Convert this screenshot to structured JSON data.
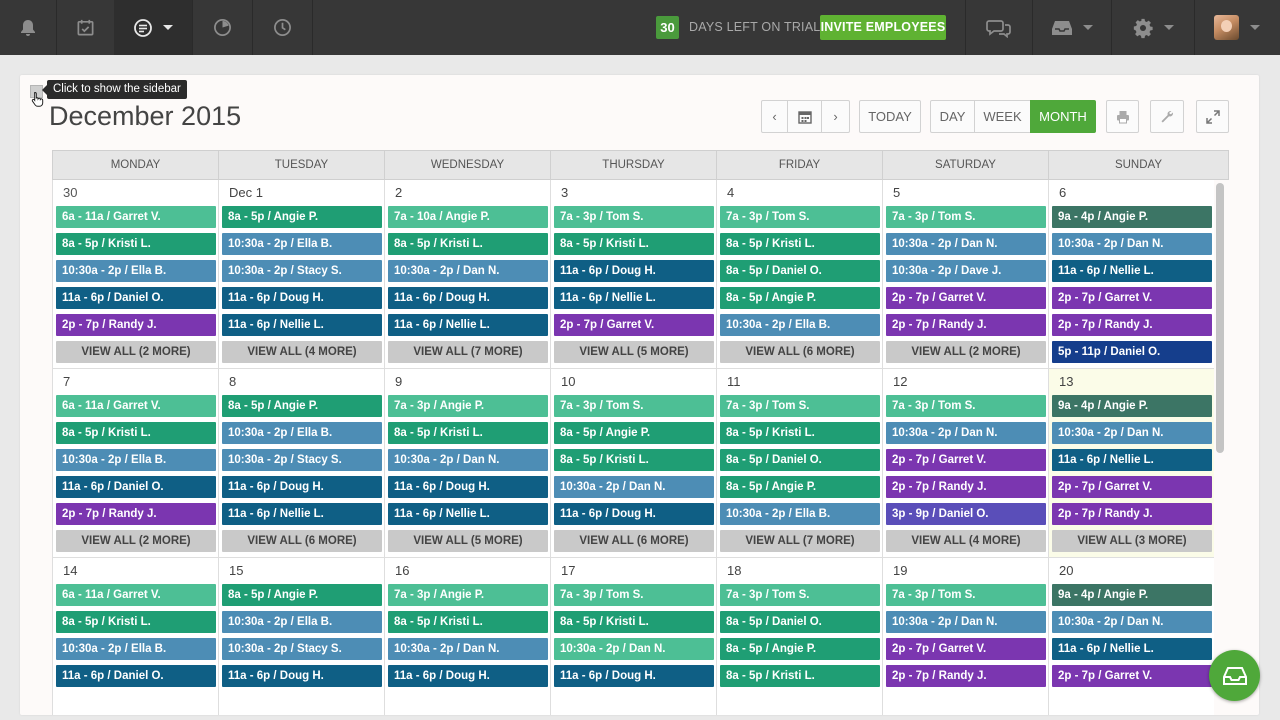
{
  "topbar": {
    "trial_count": "30",
    "trial_text": "DAYS LEFT ON TRIAL",
    "invite_label": "INVITE EMPLOYEES"
  },
  "tooltip": "Click to show the sidebar",
  "month_title": "December 2015",
  "toolbar": {
    "today": "TODAY",
    "day": "DAY",
    "week": "WEEK",
    "month": "MONTH",
    "active_view": "MONTH"
  },
  "colors": {
    "mint": "#4dbf95",
    "green": "#1f9e74",
    "steel": "#4d8db5",
    "navy": "#0f5f85",
    "purple": "#7b36b0",
    "slate": "#3c7565",
    "royal": "#153e8c",
    "violet": "#5a4eb9",
    "brand_green": "#4fa83a"
  },
  "day_names": [
    "MONDAY",
    "TUESDAY",
    "WEDNESDAY",
    "THURSDAY",
    "FRIDAY",
    "SATURDAY",
    "SUNDAY"
  ],
  "weeks": [
    [
      {
        "date": "30",
        "shifts": [
          [
            "6a - 11a / Garret V.",
            "mint"
          ],
          [
            "8a - 5p / Kristi L.",
            "green"
          ],
          [
            "10:30a - 2p / Ella B.",
            "steel"
          ],
          [
            "11a - 6p / Daniel O.",
            "navy"
          ],
          [
            "2p - 7p / Randy J.",
            "purple"
          ]
        ],
        "view_all": "VIEW ALL (2 MORE)"
      },
      {
        "date": "Dec 1",
        "shifts": [
          [
            "8a - 5p / Angie P.",
            "green"
          ],
          [
            "10:30a - 2p / Ella B.",
            "steel"
          ],
          [
            "10:30a - 2p / Stacy S.",
            "steel"
          ],
          [
            "11a - 6p / Doug H.",
            "navy"
          ],
          [
            "11a - 6p / Nellie L.",
            "navy"
          ]
        ],
        "view_all": "VIEW ALL (4 MORE)"
      },
      {
        "date": "2",
        "shifts": [
          [
            "7a - 10a / Angie P.",
            "mint"
          ],
          [
            "8a - 5p / Kristi L.",
            "green"
          ],
          [
            "10:30a - 2p / Dan N.",
            "steel"
          ],
          [
            "11a - 6p / Doug H.",
            "navy"
          ],
          [
            "11a - 6p / Nellie L.",
            "navy"
          ]
        ],
        "view_all": "VIEW ALL (7 MORE)"
      },
      {
        "date": "3",
        "shifts": [
          [
            "7a - 3p / Tom S.",
            "mint"
          ],
          [
            "8a - 5p / Kristi L.",
            "green"
          ],
          [
            "11a - 6p / Doug H.",
            "navy"
          ],
          [
            "11a - 6p / Nellie L.",
            "navy"
          ],
          [
            "2p - 7p / Garret V.",
            "purple"
          ]
        ],
        "view_all": "VIEW ALL (5 MORE)"
      },
      {
        "date": "4",
        "shifts": [
          [
            "7a - 3p / Tom S.",
            "mint"
          ],
          [
            "8a - 5p / Kristi L.",
            "green"
          ],
          [
            "8a - 5p / Daniel O.",
            "green"
          ],
          [
            "8a - 5p / Angie P.",
            "green"
          ],
          [
            "10:30a - 2p / Ella B.",
            "steel"
          ]
        ],
        "view_all": "VIEW ALL (6 MORE)"
      },
      {
        "date": "5",
        "shifts": [
          [
            "7a - 3p / Tom S.",
            "mint"
          ],
          [
            "10:30a - 2p / Dan N.",
            "steel"
          ],
          [
            "10:30a - 2p / Dave J.",
            "steel"
          ],
          [
            "2p - 7p / Garret V.",
            "purple"
          ],
          [
            "2p - 7p / Randy J.",
            "purple"
          ]
        ],
        "view_all": "VIEW ALL (2 MORE)"
      },
      {
        "date": "6",
        "shifts": [
          [
            "9a - 4p / Angie P.",
            "slate"
          ],
          [
            "10:30a - 2p / Dan N.",
            "steel"
          ],
          [
            "11a - 6p / Nellie L.",
            "navy"
          ],
          [
            "2p - 7p / Garret V.",
            "purple"
          ],
          [
            "2p - 7p / Randy J.",
            "purple"
          ],
          [
            "5p - 11p / Daniel O.",
            "royal"
          ]
        ],
        "view_all": ""
      }
    ],
    [
      {
        "date": "7",
        "shifts": [
          [
            "6a - 11a / Garret V.",
            "mint"
          ],
          [
            "8a - 5p / Kristi L.",
            "green"
          ],
          [
            "10:30a - 2p / Ella B.",
            "steel"
          ],
          [
            "11a - 6p / Daniel O.",
            "navy"
          ],
          [
            "2p - 7p / Randy J.",
            "purple"
          ]
        ],
        "view_all": "VIEW ALL (2 MORE)"
      },
      {
        "date": "8",
        "shifts": [
          [
            "8a - 5p / Angie P.",
            "green"
          ],
          [
            "10:30a - 2p / Ella B.",
            "steel"
          ],
          [
            "10:30a - 2p / Stacy S.",
            "steel"
          ],
          [
            "11a - 6p / Doug H.",
            "navy"
          ],
          [
            "11a - 6p / Nellie L.",
            "navy"
          ]
        ],
        "view_all": "VIEW ALL (6 MORE)"
      },
      {
        "date": "9",
        "shifts": [
          [
            "7a - 3p / Angie P.",
            "mint"
          ],
          [
            "8a - 5p / Kristi L.",
            "green"
          ],
          [
            "10:30a - 2p / Dan N.",
            "steel"
          ],
          [
            "11a - 6p / Doug H.",
            "navy"
          ],
          [
            "11a - 6p / Nellie L.",
            "navy"
          ]
        ],
        "view_all": "VIEW ALL (5 MORE)"
      },
      {
        "date": "10",
        "shifts": [
          [
            "7a - 3p / Tom S.",
            "mint"
          ],
          [
            "8a - 5p / Angie P.",
            "green"
          ],
          [
            "8a - 5p / Kristi L.",
            "green"
          ],
          [
            "10:30a - 2p / Dan N.",
            "steel"
          ],
          [
            "11a - 6p / Doug H.",
            "navy"
          ]
        ],
        "view_all": "VIEW ALL (6 MORE)"
      },
      {
        "date": "11",
        "shifts": [
          [
            "7a - 3p / Tom S.",
            "mint"
          ],
          [
            "8a - 5p / Kristi L.",
            "green"
          ],
          [
            "8a - 5p / Daniel O.",
            "green"
          ],
          [
            "8a - 5p / Angie P.",
            "green"
          ],
          [
            "10:30a - 2p / Ella B.",
            "steel"
          ]
        ],
        "view_all": "VIEW ALL (7 MORE)"
      },
      {
        "date": "12",
        "shifts": [
          [
            "7a - 3p / Tom S.",
            "mint"
          ],
          [
            "10:30a - 2p / Dan N.",
            "steel"
          ],
          [
            "2p - 7p / Garret V.",
            "purple"
          ],
          [
            "2p - 7p / Randy J.",
            "purple"
          ],
          [
            "3p - 9p / Daniel O.",
            "violet"
          ]
        ],
        "view_all": "VIEW ALL (4 MORE)"
      },
      {
        "date": "13",
        "today": true,
        "shifts": [
          [
            "9a - 4p / Angie P.",
            "slate"
          ],
          [
            "10:30a - 2p / Dan N.",
            "steel"
          ],
          [
            "11a - 6p / Nellie L.",
            "navy"
          ],
          [
            "2p - 7p / Garret V.",
            "purple"
          ],
          [
            "2p - 7p / Randy J.",
            "purple"
          ]
        ],
        "view_all": "VIEW ALL (3 MORE)"
      }
    ],
    [
      {
        "date": "14",
        "shifts": [
          [
            "6a - 11a / Garret V.",
            "mint"
          ],
          [
            "8a - 5p / Kristi L.",
            "green"
          ],
          [
            "10:30a - 2p / Ella B.",
            "steel"
          ],
          [
            "11a - 6p / Daniel O.",
            "navy"
          ]
        ],
        "view_all": ""
      },
      {
        "date": "15",
        "shifts": [
          [
            "8a - 5p / Angie P.",
            "green"
          ],
          [
            "10:30a - 2p / Ella B.",
            "steel"
          ],
          [
            "10:30a - 2p / Stacy S.",
            "steel"
          ],
          [
            "11a - 6p / Doug H.",
            "navy"
          ]
        ],
        "view_all": ""
      },
      {
        "date": "16",
        "shifts": [
          [
            "7a - 3p / Angie P.",
            "mint"
          ],
          [
            "8a - 5p / Kristi L.",
            "green"
          ],
          [
            "10:30a - 2p / Dan N.",
            "steel"
          ],
          [
            "11a - 6p / Doug H.",
            "navy"
          ]
        ],
        "view_all": ""
      },
      {
        "date": "17",
        "shifts": [
          [
            "7a - 3p / Tom S.",
            "mint"
          ],
          [
            "8a - 5p / Kristi L.",
            "green"
          ],
          [
            "10:30a - 2p / Dan N.",
            "mint"
          ],
          [
            "11a - 6p / Doug H.",
            "navy"
          ]
        ],
        "view_all": ""
      },
      {
        "date": "18",
        "shifts": [
          [
            "7a - 3p / Tom S.",
            "mint"
          ],
          [
            "8a - 5p / Daniel O.",
            "green"
          ],
          [
            "8a - 5p / Angie P.",
            "green"
          ],
          [
            "8a - 5p / Kristi L.",
            "green"
          ]
        ],
        "view_all": ""
      },
      {
        "date": "19",
        "shifts": [
          [
            "7a - 3p / Tom S.",
            "mint"
          ],
          [
            "10:30a - 2p / Dan N.",
            "steel"
          ],
          [
            "2p - 7p / Garret V.",
            "purple"
          ],
          [
            "2p - 7p / Randy J.",
            "purple"
          ]
        ],
        "view_all": ""
      },
      {
        "date": "20",
        "shifts": [
          [
            "9a - 4p / Angie P.",
            "slate"
          ],
          [
            "10:30a - 2p / Dan N.",
            "steel"
          ],
          [
            "11a - 6p / Nellie L.",
            "navy"
          ],
          [
            "2p - 7p / Garret V.",
            "purple"
          ]
        ],
        "view_all": ""
      }
    ]
  ]
}
